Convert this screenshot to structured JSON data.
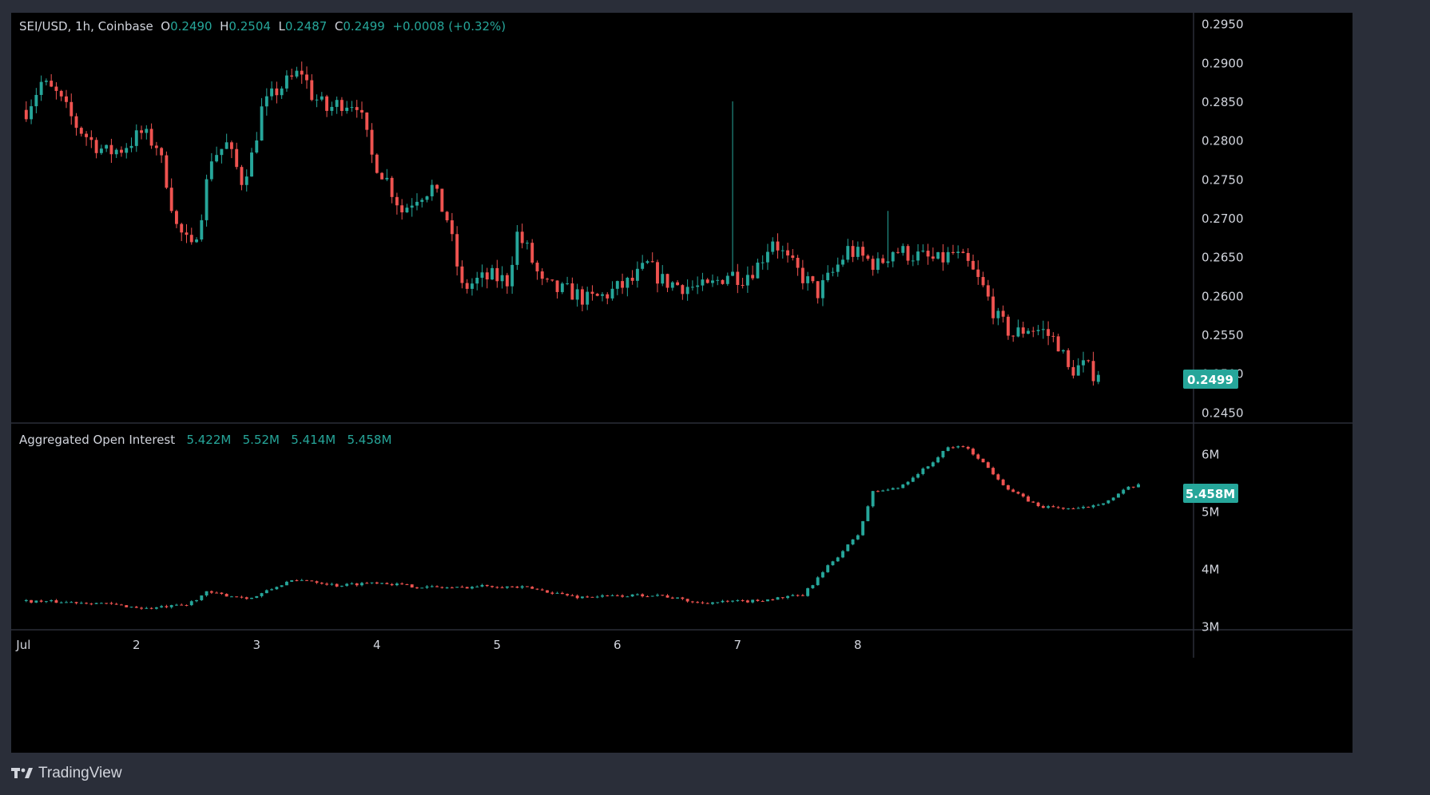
{
  "header": {
    "symbol": "SEI/USD, 1h, Coinbase",
    "open_label": "O",
    "open": "0.2490",
    "high_label": "H",
    "high": "0.2504",
    "low_label": "L",
    "low": "0.2487",
    "close_label": "C",
    "close": "0.2499",
    "change": "+0.0008 (+0.32%)"
  },
  "oi_header": {
    "name": "Aggregated Open Interest",
    "open": "5.422M",
    "high": "5.52M",
    "low": "5.414M",
    "close": "5.458M"
  },
  "branding": {
    "logo": "TV",
    "name": "TradingView"
  },
  "colors": {
    "up": "#26a69a",
    "down": "#ef5350",
    "background": "#000000",
    "frame": "#2a2e39",
    "text": "#d1d4dc"
  },
  "chart_data": [
    {
      "type": "candlestick",
      "title": "SEI/USD, 1h, Coinbase",
      "x_ticks": [
        "Jul",
        "2",
        "3",
        "4",
        "5",
        "6",
        "7",
        "8"
      ],
      "y_ticks": [
        "0.2950",
        "0.2900",
        "0.2850",
        "0.2800",
        "0.2750",
        "0.2700",
        "0.2650",
        "0.2600",
        "0.2550",
        "0.2500",
        "0.2450"
      ],
      "ylim": [
        0.2437,
        0.2965
      ],
      "current_price_label": "0.2499",
      "grid": false,
      "anchors": [
        [
          0,
          0.284
        ],
        [
          3,
          0.2875
        ],
        [
          6,
          0.286
        ],
        [
          10,
          0.282
        ],
        [
          13,
          0.28
        ],
        [
          16,
          0.2785
        ],
        [
          19,
          0.279
        ],
        [
          23,
          0.281
        ],
        [
          26,
          0.2795
        ],
        [
          28,
          0.275
        ],
        [
          30,
          0.269
        ],
        [
          33,
          0.266
        ],
        [
          35,
          0.271
        ],
        [
          37,
          0.278
        ],
        [
          40,
          0.2795
        ],
        [
          43,
          0.275
        ],
        [
          45,
          0.278
        ],
        [
          47,
          0.284
        ],
        [
          50,
          0.2865
        ],
        [
          53,
          0.288
        ],
        [
          55,
          0.289
        ],
        [
          57,
          0.286
        ],
        [
          60,
          0.284
        ],
        [
          63,
          0.285
        ],
        [
          66,
          0.285
        ],
        [
          69,
          0.278
        ],
        [
          72,
          0.275
        ],
        [
          75,
          0.271
        ],
        [
          78,
          0.273
        ],
        [
          81,
          0.274
        ],
        [
          84,
          0.27
        ],
        [
          87,
          0.261
        ],
        [
          90,
          0.262
        ],
        [
          93,
          0.2625
        ],
        [
          96,
          0.262
        ],
        [
          98,
          0.268
        ],
        [
          100,
          0.266
        ],
        [
          103,
          0.2615
        ],
        [
          106,
          0.2608
        ],
        [
          109,
          0.2605
        ],
        [
          112,
          0.2595
        ],
        [
          115,
          0.26
        ],
        [
          118,
          0.261
        ],
        [
          121,
          0.262
        ],
        [
          124,
          0.264
        ],
        [
          127,
          0.262
        ],
        [
          130,
          0.2615
        ],
        [
          133,
          0.2612
        ],
        [
          136,
          0.261
        ],
        [
          138,
          0.262
        ],
        [
          140,
          0.263
        ],
        [
          143,
          0.2625
        ],
        [
          146,
          0.264
        ],
        [
          149,
          0.2675
        ],
        [
          152,
          0.2645
        ],
        [
          155,
          0.2625
        ],
        [
          158,
          0.2605
        ],
        [
          161,
          0.263
        ],
        [
          164,
          0.266
        ],
        [
          167,
          0.265
        ],
        [
          170,
          0.264
        ],
        [
          173,
          0.266
        ],
        [
          176,
          0.2655
        ],
        [
          179,
          0.265
        ],
        [
          182,
          0.2645
        ],
        [
          185,
          0.2655
        ],
        [
          188,
          0.264
        ],
        [
          191,
          0.261
        ],
        [
          194,
          0.257
        ],
        [
          197,
          0.255
        ],
        [
          200,
          0.256
        ],
        [
          203,
          0.2555
        ],
        [
          206,
          0.254
        ],
        [
          208,
          0.2505
        ],
        [
          211,
          0.251
        ],
        [
          214,
          0.2498
        ]
      ],
      "last_candle": {
        "open": 0.249,
        "high": 0.2504,
        "low": 0.2487,
        "close": 0.2499
      },
      "notable_wicks": [
        {
          "index": 141,
          "high": 0.2851
        },
        {
          "index": 172,
          "high": 0.271
        }
      ],
      "candle_count": 215,
      "x_index_range": [
        -3,
        233
      ]
    },
    {
      "type": "candlestick",
      "title": "Aggregated Open Interest",
      "y_ticks": [
        "6M",
        "5M",
        "4M",
        "3M"
      ],
      "ylim": [
        2.95,
        6.55
      ],
      "unit": "M",
      "current_value_label": "5.458M",
      "anchors": [
        [
          0,
          3.45
        ],
        [
          14,
          3.42
        ],
        [
          24,
          3.32
        ],
        [
          32,
          3.38
        ],
        [
          36,
          3.6
        ],
        [
          40,
          3.55
        ],
        [
          45,
          3.5
        ],
        [
          52,
          3.78
        ],
        [
          56,
          3.82
        ],
        [
          62,
          3.72
        ],
        [
          70,
          3.78
        ],
        [
          78,
          3.7
        ],
        [
          86,
          3.68
        ],
        [
          92,
          3.72
        ],
        [
          100,
          3.68
        ],
        [
          110,
          3.52
        ],
        [
          126,
          3.56
        ],
        [
          134,
          3.42
        ],
        [
          145,
          3.45
        ],
        [
          155,
          3.55
        ],
        [
          160,
          4.05
        ],
        [
          166,
          4.6
        ],
        [
          169,
          5.35
        ],
        [
          174,
          5.42
        ],
        [
          180,
          5.8
        ],
        [
          184,
          6.12
        ],
        [
          187,
          6.15
        ],
        [
          190,
          5.95
        ],
        [
          196,
          5.4
        ],
        [
          202,
          5.1
        ],
        [
          210,
          5.05
        ],
        [
          216,
          5.2
        ],
        [
          220,
          5.42
        ],
        [
          222,
          5.458
        ]
      ],
      "candle_count": 223,
      "x_index_range": [
        -3,
        233
      ]
    }
  ]
}
